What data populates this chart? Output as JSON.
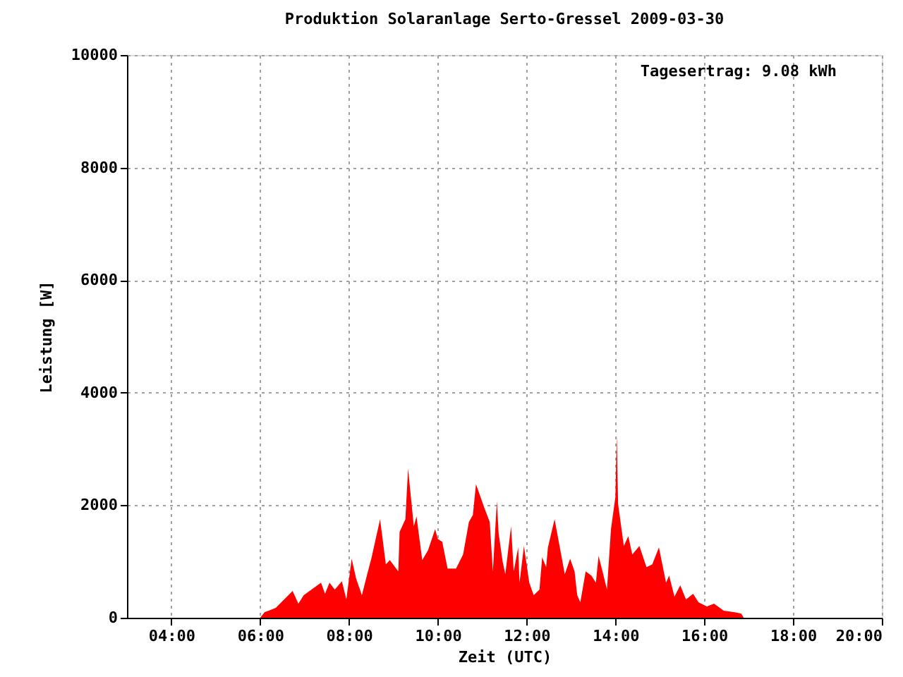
{
  "chart_data": {
    "type": "area",
    "title": "Produktion Solaranlage Serto-Gressel 2009-03-30",
    "xlabel": "Zeit (UTC)",
    "ylabel": "Leistung [W]",
    "annotations": [
      "Tagesertrag: 9.08 kWh"
    ],
    "x": [
      6.0,
      6.1,
      6.19,
      6.35,
      6.73,
      6.86,
      6.98,
      7.37,
      7.46,
      7.56,
      7.68,
      7.84,
      7.94,
      8.06,
      8.16,
      8.29,
      8.41,
      8.51,
      8.7,
      8.83,
      8.92,
      9.11,
      9.14,
      9.27,
      9.33,
      9.46,
      9.52,
      9.65,
      9.78,
      9.94,
      10.0,
      10.1,
      10.22,
      10.41,
      10.57,
      10.7,
      10.79,
      10.86,
      11.05,
      11.17,
      11.24,
      11.33,
      11.37,
      11.46,
      11.52,
      11.65,
      11.71,
      11.81,
      11.84,
      11.94,
      12.06,
      12.16,
      12.29,
      12.35,
      12.44,
      12.48,
      12.63,
      12.76,
      12.86,
      12.98,
      13.08,
      13.14,
      13.21,
      13.33,
      13.46,
      13.56,
      13.62,
      13.71,
      13.81,
      13.9,
      14.0,
      14.03,
      14.06,
      14.19,
      14.29,
      14.38,
      14.54,
      14.7,
      14.83,
      14.98,
      15.14,
      15.21,
      15.33,
      15.46,
      15.59,
      15.75,
      15.87,
      16.06,
      16.22,
      16.44,
      16.67,
      16.83,
      16.89
    ],
    "series": [
      {
        "color": "#ff0000",
        "values": [
          0,
          100,
          125,
          175,
          475,
          250,
          400,
          625,
          425,
          625,
          500,
          650,
          325,
          1050,
          700,
          400,
          775,
          1075,
          1750,
          950,
          1025,
          825,
          1525,
          1750,
          2650,
          1625,
          1800,
          1025,
          1200,
          1575,
          1400,
          1350,
          875,
          875,
          1125,
          1700,
          1825,
          2375,
          1950,
          1700,
          825,
          2075,
          1500,
          1000,
          775,
          1625,
          825,
          1250,
          625,
          1275,
          625,
          400,
          500,
          1075,
          900,
          1250,
          1750,
          1200,
          775,
          1050,
          825,
          400,
          275,
          825,
          750,
          625,
          1100,
          825,
          500,
          1575,
          2150,
          3250,
          2025,
          1275,
          1450,
          1125,
          1275,
          900,
          950,
          1250,
          625,
          750,
          375,
          575,
          325,
          425,
          275,
          200,
          250,
          125,
          100,
          75,
          0
        ]
      }
    ],
    "xlim": [
      3,
      20
    ],
    "xticks": [
      {
        "value": 4,
        "label": "04:00"
      },
      {
        "value": 6,
        "label": "06:00"
      },
      {
        "value": 8,
        "label": "08:00"
      },
      {
        "value": 10,
        "label": "10:00"
      },
      {
        "value": 12,
        "label": "12:00"
      },
      {
        "value": 14,
        "label": "14:00"
      },
      {
        "value": 16,
        "label": "16:00"
      },
      {
        "value": 18,
        "label": "18:00"
      },
      {
        "value": 20,
        "label": "20:00"
      }
    ],
    "ylim": [
      0,
      10000
    ],
    "yticks": [
      0,
      2000,
      4000,
      6000,
      8000,
      10000
    ],
    "grid": true
  }
}
